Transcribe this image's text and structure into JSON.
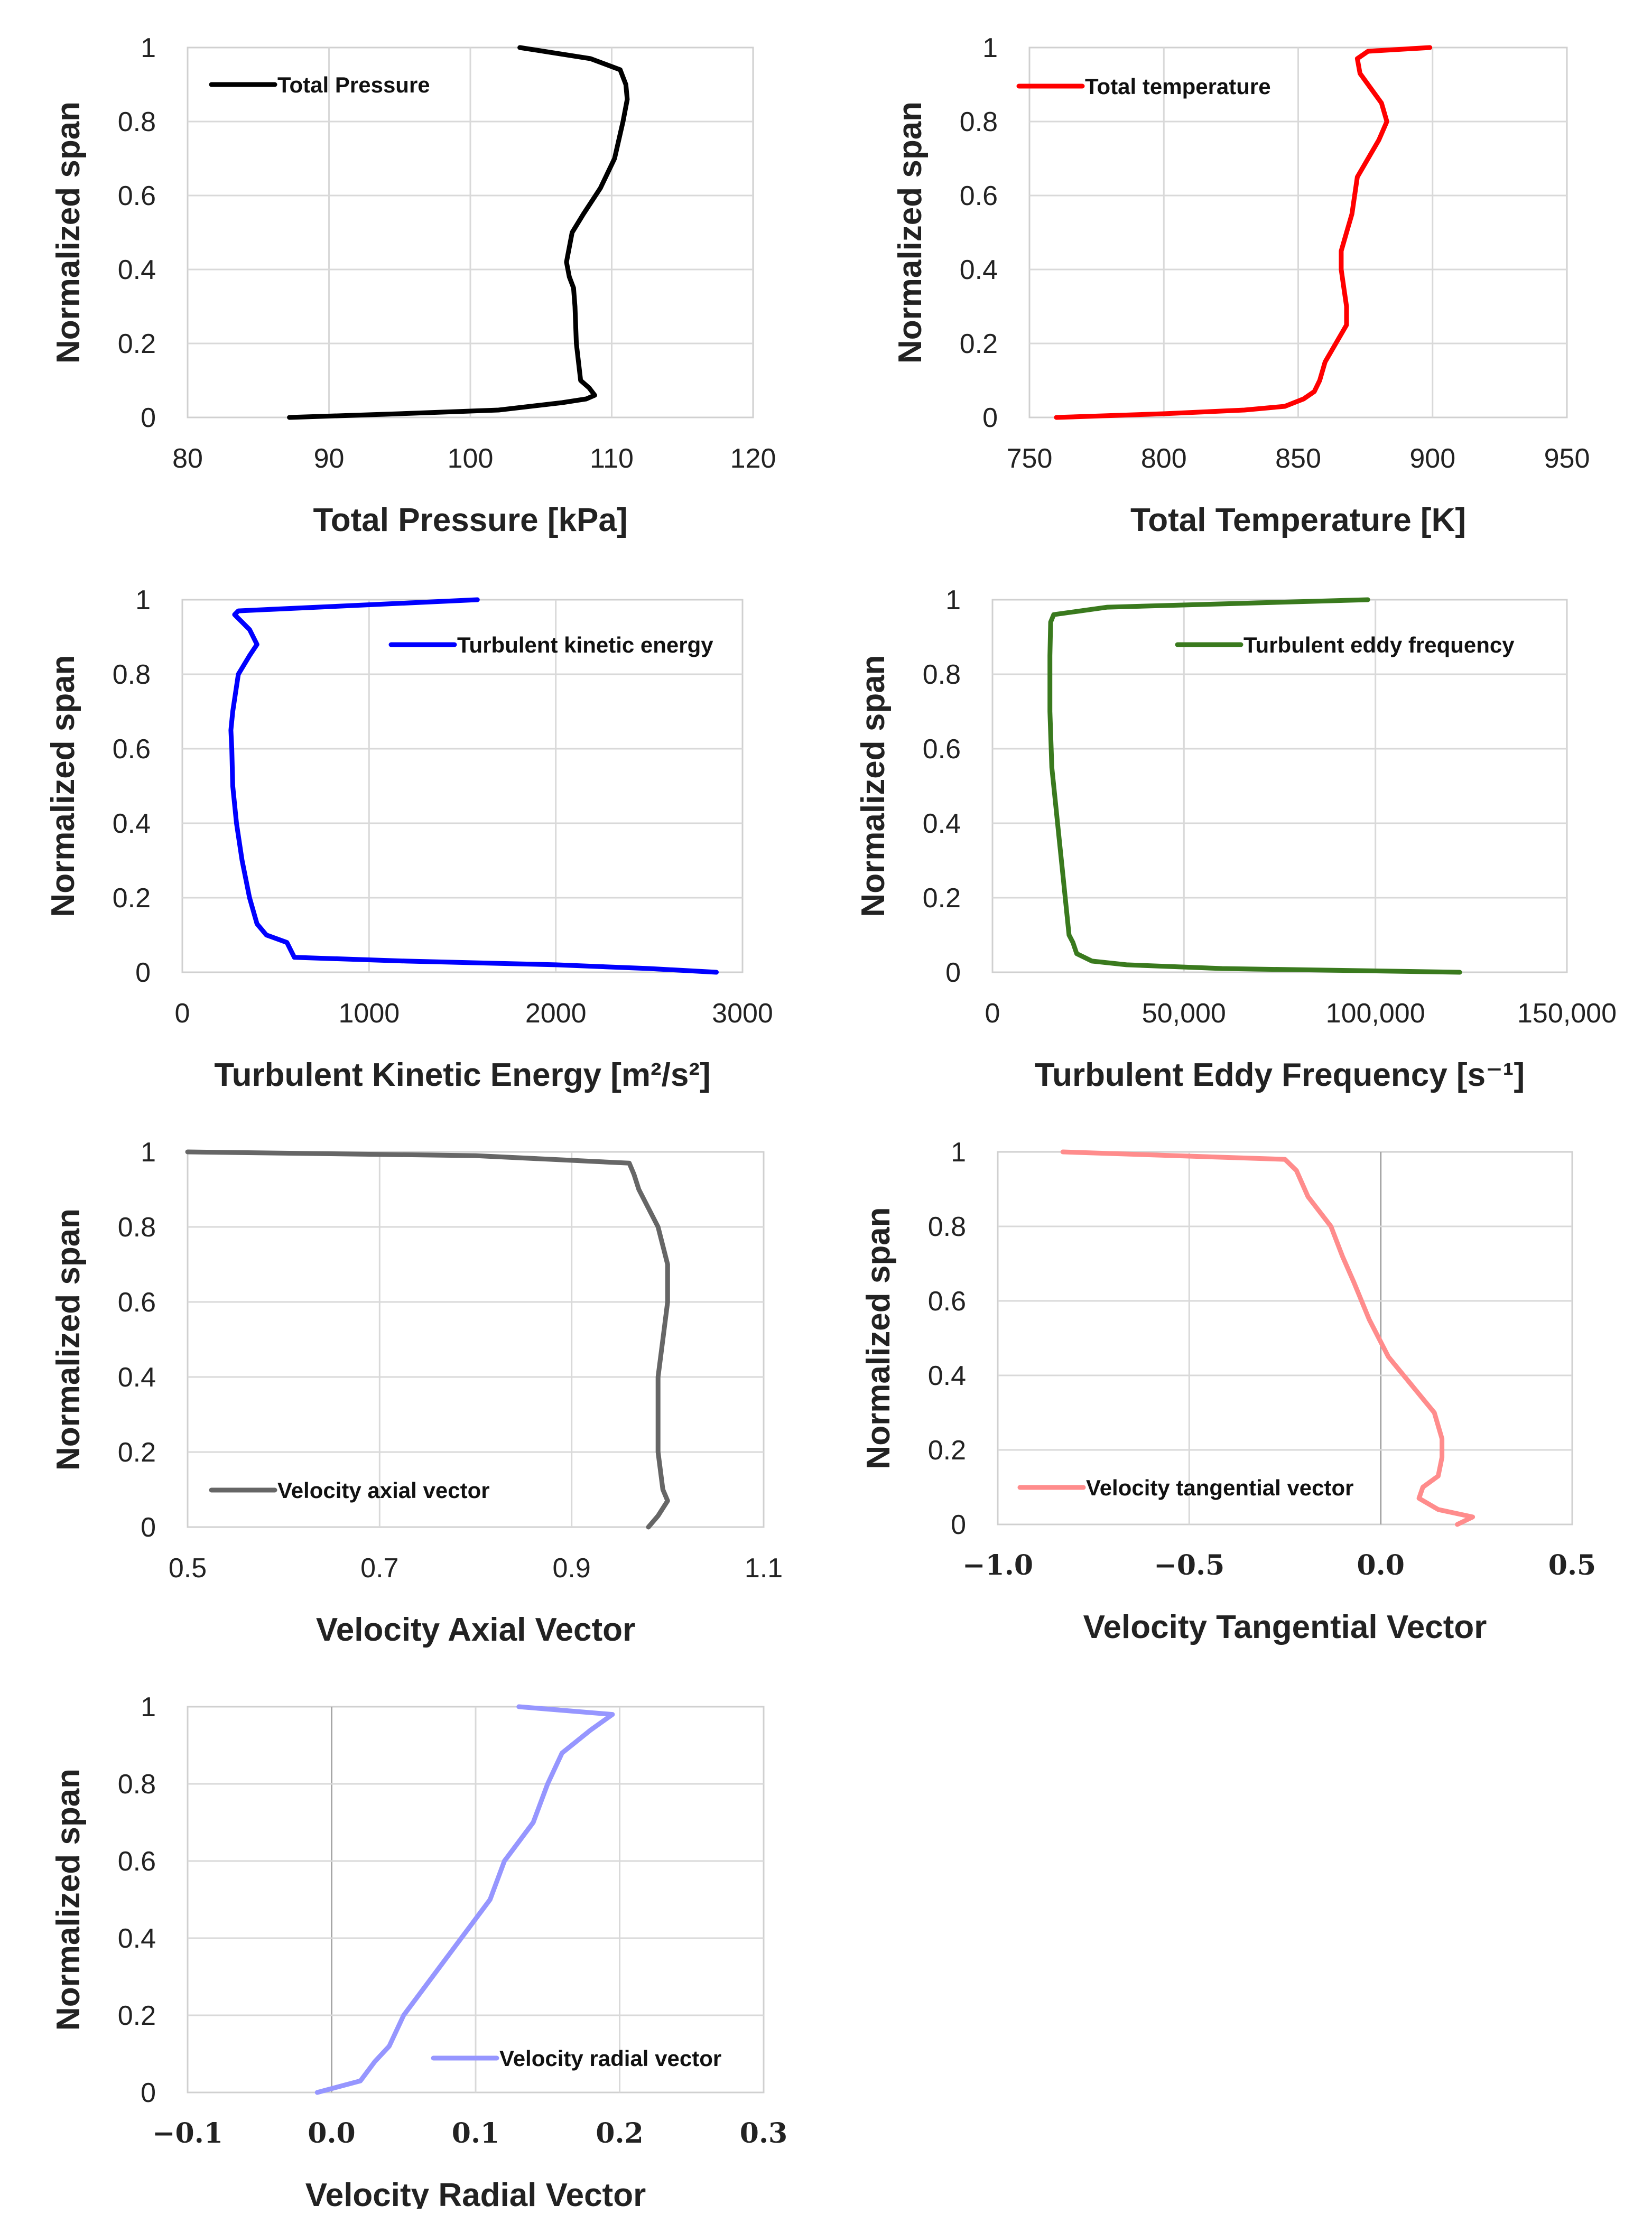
{
  "chart_data": [
    {
      "type": "line",
      "title": "",
      "xlabel": "Total Pressure [kPa]",
      "ylabel": "Normalized span",
      "xlim": [
        80,
        120
      ],
      "ylim": [
        0,
        1
      ],
      "xticks": [
        "80",
        "90",
        "100",
        "110",
        "120"
      ],
      "yticks": [
        "0",
        "0.2",
        "0.4",
        "0.6",
        "0.8",
        "1"
      ],
      "color": "#000000",
      "series": [
        {
          "name": "Total Pressure",
          "x": [
            87.2,
            95,
            102,
            106.5,
            108.2,
            108.8,
            108.4,
            107.8,
            107.5,
            107.4,
            107.3,
            107.0,
            106.8,
            107.2,
            108.0,
            109.2,
            110.2,
            110.8,
            111.1,
            111.0,
            110.6,
            108.5,
            103.5
          ],
          "y": [
            0,
            0.01,
            0.02,
            0.04,
            0.05,
            0.06,
            0.08,
            0.1,
            0.2,
            0.3,
            0.35,
            0.38,
            0.42,
            0.5,
            0.55,
            0.62,
            0.7,
            0.8,
            0.86,
            0.9,
            0.94,
            0.97,
            1.0
          ]
        }
      ]
    },
    {
      "type": "line",
      "title": "",
      "xlabel": "Total Temperature [K]",
      "ylabel": "Normalized span",
      "xlim": [
        750,
        950
      ],
      "ylim": [
        0,
        1
      ],
      "xticks": [
        "750",
        "800",
        "850",
        "900",
        "950"
      ],
      "yticks": [
        "0",
        "0.2",
        "0.4",
        "0.6",
        "0.8",
        "1"
      ],
      "color": "#ff0000",
      "series": [
        {
          "name": "Total temperature",
          "x": [
            760,
            800,
            830,
            845,
            852,
            856,
            858,
            860,
            864,
            868,
            868,
            867,
            866,
            866,
            868,
            870,
            871,
            872,
            880,
            883,
            881,
            873,
            872,
            876,
            899
          ],
          "y": [
            0,
            0.01,
            0.02,
            0.03,
            0.05,
            0.07,
            0.1,
            0.15,
            0.2,
            0.25,
            0.3,
            0.35,
            0.4,
            0.45,
            0.5,
            0.55,
            0.6,
            0.65,
            0.75,
            0.8,
            0.85,
            0.93,
            0.97,
            0.99,
            1.0
          ]
        }
      ]
    },
    {
      "type": "line",
      "title": "",
      "xlabel": "Turbulent Kinetic Energy [m²/s²]",
      "ylabel": "Normalized span",
      "xlim": [
        0,
        3000
      ],
      "ylim": [
        0,
        1
      ],
      "xticks": [
        "0",
        "1000",
        "2000",
        "3000"
      ],
      "yticks": [
        "0",
        "0.2",
        "0.4",
        "0.6",
        "0.8",
        "1"
      ],
      "color": "#0000ff",
      "series": [
        {
          "name": "Turbulent kinetic energy",
          "x": [
            2860,
            2500,
            2000,
            1200,
            600,
            580,
            560,
            450,
            400,
            360,
            320,
            290,
            270,
            265,
            260,
            270,
            300,
            360,
            400,
            360,
            280,
            300,
            1580
          ],
          "y": [
            0,
            0.01,
            0.02,
            0.03,
            0.04,
            0.06,
            0.08,
            0.1,
            0.13,
            0.2,
            0.3,
            0.4,
            0.5,
            0.6,
            0.65,
            0.7,
            0.8,
            0.85,
            0.88,
            0.92,
            0.96,
            0.97,
            1.0
          ]
        }
      ]
    },
    {
      "type": "line",
      "title": "",
      "xlabel": "Turbulent Eddy Frequency [s⁻¹]",
      "ylabel": "Normalized span",
      "xlim": [
        0,
        150000
      ],
      "ylim": [
        0,
        1
      ],
      "xticks": [
        "0",
        "50,000",
        "100,000",
        "150,000"
      ],
      "yticks": [
        "0",
        "0.2",
        "0.4",
        "0.6",
        "0.8",
        "1"
      ],
      "color": "#3a7a1e",
      "series": [
        {
          "name": "Turbulent eddy frequency",
          "x": [
            122000,
            60000,
            35000,
            26000,
            22000,
            21000,
            20000,
            19500,
            18500,
            17500,
            16500,
            15500,
            15000,
            15000,
            15200,
            16000,
            30000,
            98000
          ],
          "y": [
            0,
            0.01,
            0.02,
            0.03,
            0.05,
            0.08,
            0.1,
            0.15,
            0.25,
            0.35,
            0.45,
            0.55,
            0.7,
            0.85,
            0.94,
            0.96,
            0.98,
            1.0
          ]
        }
      ]
    },
    {
      "type": "line",
      "title": "",
      "xlabel": "Velocity Axial Vector",
      "ylabel": "Normalized span",
      "xlim": [
        0.5,
        1.1
      ],
      "ylim": [
        0,
        1
      ],
      "xticks": [
        "0.5",
        "0.7",
        "0.9",
        "1.1"
      ],
      "yticks": [
        "0",
        "0.2",
        "0.4",
        "0.6",
        "0.8",
        "1"
      ],
      "color": "#666666",
      "series": [
        {
          "name": "Velocity axial vector",
          "x": [
            0.98,
            0.99,
            1.0,
            0.995,
            0.99,
            0.99,
            0.99,
            0.995,
            1.0,
            1.0,
            0.99,
            0.98,
            0.97,
            0.965,
            0.96,
            0.8,
            0.5
          ],
          "y": [
            0,
            0.03,
            0.07,
            0.1,
            0.2,
            0.3,
            0.4,
            0.5,
            0.6,
            0.7,
            0.8,
            0.85,
            0.9,
            0.94,
            0.97,
            0.99,
            1.0
          ]
        }
      ]
    },
    {
      "type": "line",
      "title": "",
      "xlabel": "Velocity Tangential Vector",
      "ylabel": "Normalized span",
      "xlim": [
        -1.0,
        0.5
      ],
      "ylim": [
        0,
        1
      ],
      "xticks": [
        "−1.0",
        "−0.5",
        "0.0",
        "0.5"
      ],
      "yticks": [
        "0",
        "0.2",
        "0.4",
        "0.6",
        "0.8",
        "1"
      ],
      "color": "#ff8c8c",
      "series": [
        {
          "name": "Velocity tangential vector",
          "x": [
            0.2,
            0.24,
            0.15,
            0.1,
            0.11,
            0.15,
            0.16,
            0.16,
            0.14,
            0.1,
            0.02,
            -0.03,
            -0.07,
            -0.1,
            -0.13,
            -0.19,
            -0.22,
            -0.25,
            -0.83
          ],
          "y": [
            0,
            0.02,
            0.04,
            0.07,
            0.1,
            0.13,
            0.18,
            0.23,
            0.3,
            0.35,
            0.45,
            0.55,
            0.65,
            0.72,
            0.8,
            0.88,
            0.95,
            0.98,
            1.0
          ]
        }
      ]
    },
    {
      "type": "line",
      "title": "",
      "xlabel": "Velocity Radial Vector",
      "ylabel": "Normalized span",
      "xlim": [
        -0.1,
        0.3
      ],
      "ylim": [
        0,
        1
      ],
      "xticks": [
        "−0.1",
        "0.0",
        "0.1",
        "0.2",
        "0.3"
      ],
      "yticks": [
        "0",
        "0.2",
        "0.4",
        "0.6",
        "0.8",
        "1"
      ],
      "color": "#9696ff",
      "series": [
        {
          "name": "Velocity radial vector",
          "x": [
            -0.01,
            0.02,
            0.03,
            0.04,
            0.05,
            0.07,
            0.09,
            0.11,
            0.12,
            0.14,
            0.15,
            0.16,
            0.18,
            0.195,
            0.13
          ],
          "y": [
            0,
            0.03,
            0.08,
            0.12,
            0.2,
            0.3,
            0.4,
            0.5,
            0.6,
            0.7,
            0.8,
            0.88,
            0.94,
            0.98,
            1.0
          ]
        }
      ]
    }
  ]
}
